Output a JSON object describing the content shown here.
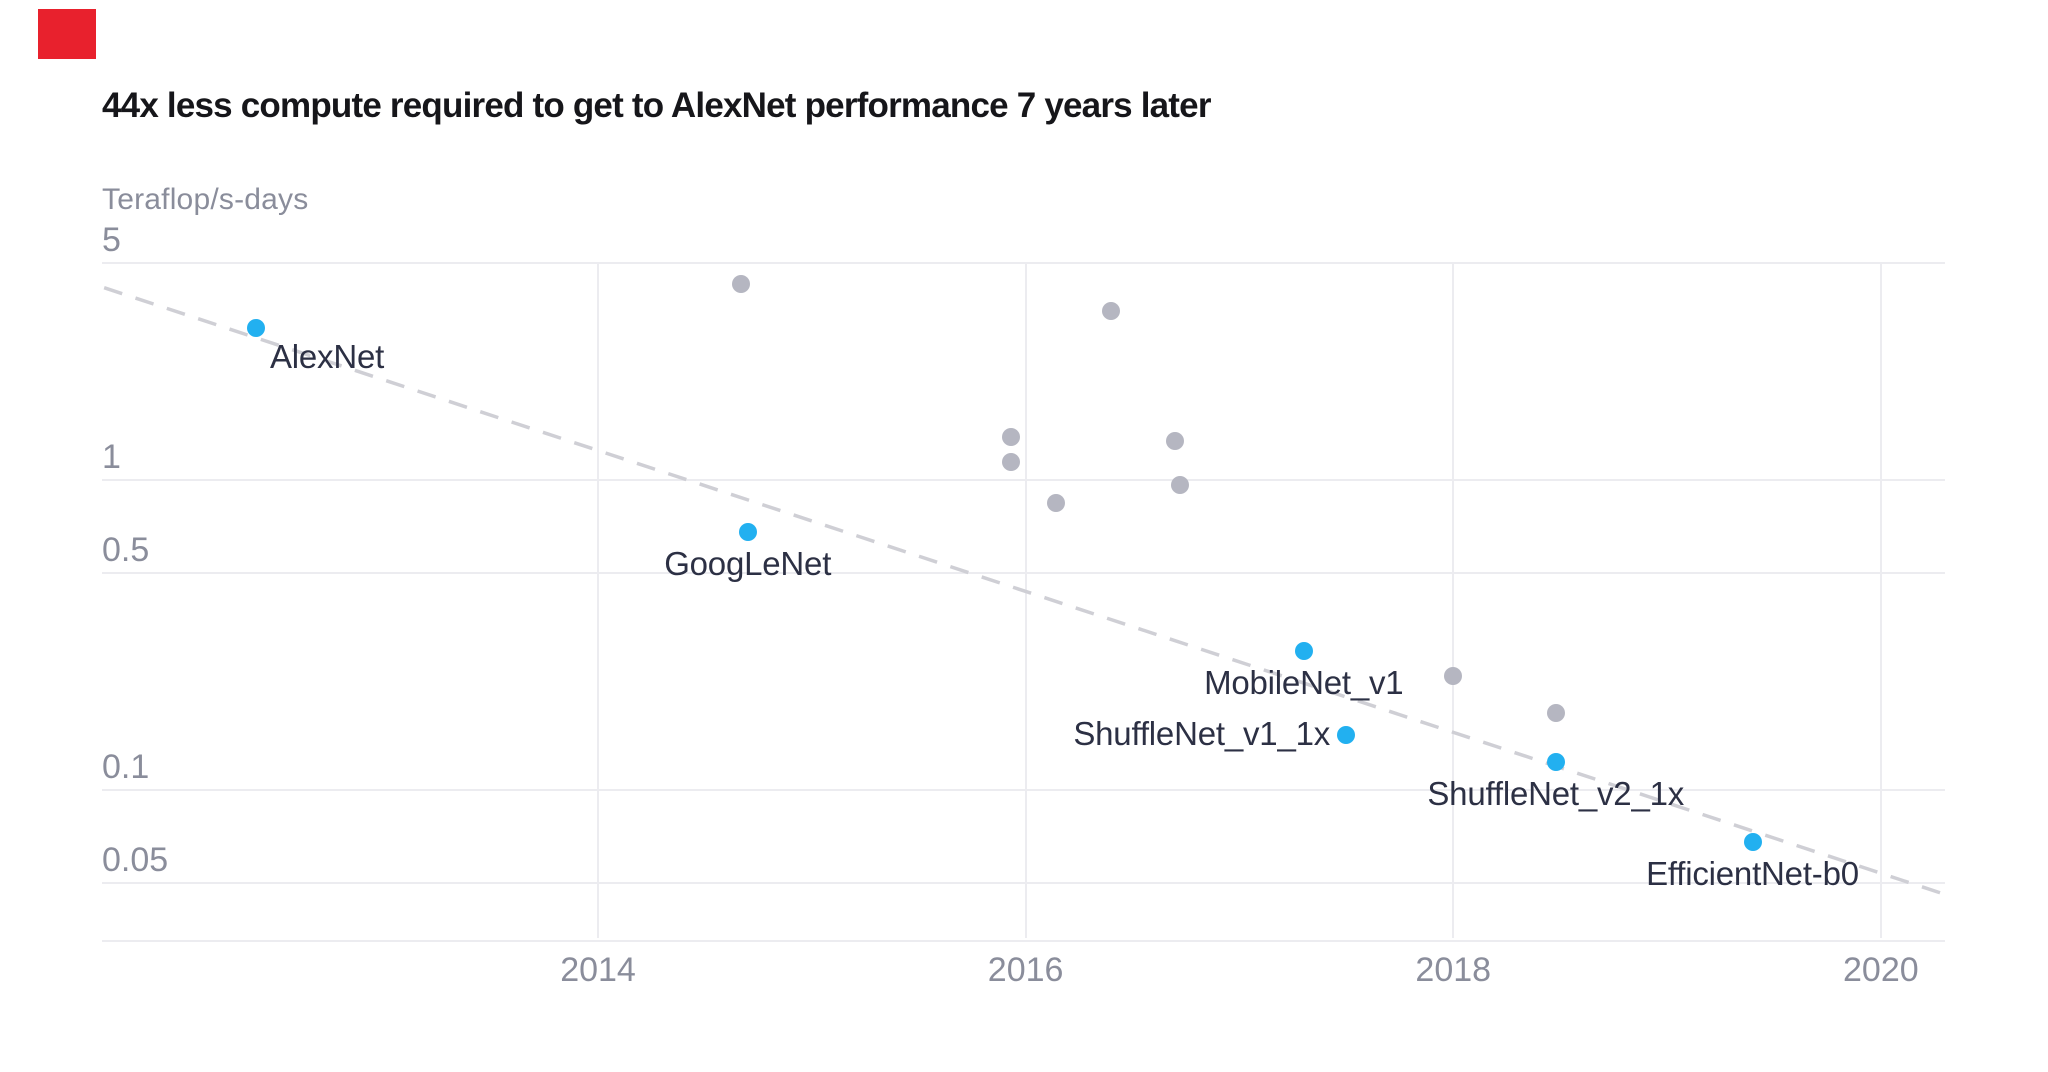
{
  "page": {
    "background_color": "#ffffff",
    "click_marker_color": "#e8212d"
  },
  "title": "44x less compute required to get to AlexNet performance 7 years later",
  "chart_data": {
    "type": "scatter",
    "title": "44x less compute required to get to AlexNet performance 7 years later",
    "xlabel": "",
    "ylabel": "Teraflop/s-days",
    "y_scale": "log",
    "grid": true,
    "legend": "none",
    "xlim": [
      2011.68,
      2020.3
    ],
    "ylim": [
      0.0326,
      5.01
    ],
    "x_ticks": [
      {
        "label": "2014",
        "year": 2014
      },
      {
        "label": "2016",
        "year": 2016
      },
      {
        "label": "2018",
        "year": 2018
      },
      {
        "label": "2020",
        "year": 2020
      }
    ],
    "y_ticks": [
      {
        "label": "5",
        "value": 5
      },
      {
        "label": "1",
        "value": 1
      },
      {
        "label": "0.5",
        "value": 0.5
      },
      {
        "label": "0.1",
        "value": 0.1
      },
      {
        "label": "0.05",
        "value": 0.05
      }
    ],
    "labeled_points": [
      {
        "name": "AlexNet",
        "year": 2012.4,
        "value": 3.1,
        "placement": "below-right"
      },
      {
        "name": "GoogLeNet",
        "year": 2014.7,
        "value": 0.68,
        "placement": "below-center"
      },
      {
        "name": "MobileNet_v1",
        "year": 2017.3,
        "value": 0.28,
        "placement": "below-center"
      },
      {
        "name": "ShuffleNet_v1_1x",
        "year": 2017.5,
        "value": 0.15,
        "placement": "left"
      },
      {
        "name": "ShuffleNet_v2_1x",
        "year": 2018.48,
        "value": 0.123,
        "placement": "below-center"
      },
      {
        "name": "EfficientNet-b0",
        "year": 2019.4,
        "value": 0.068,
        "placement": "below-center"
      }
    ],
    "unlabeled_points": [
      {
        "year": 2014.67,
        "value": 4.3
      },
      {
        "year": 2016.4,
        "value": 3.5
      },
      {
        "year": 2015.93,
        "value": 1.38
      },
      {
        "year": 2015.93,
        "value": 1.14
      },
      {
        "year": 2016.14,
        "value": 0.84
      },
      {
        "year": 2016.7,
        "value": 1.34
      },
      {
        "year": 2016.72,
        "value": 0.96
      },
      {
        "year": 2018.0,
        "value": 0.233
      },
      {
        "year": 2018.48,
        "value": 0.177
      }
    ],
    "trend_line": {
      "style": "dashed",
      "points": [
        [
          2011.69,
          4.17
        ],
        [
          2020.295,
          0.0462
        ]
      ]
    },
    "colors": {
      "labeled_point": "#22b0f0",
      "unlabeled_point": "#b5b6c1",
      "trend_line": "#cfcfd5",
      "gridline": "#ececf0",
      "tick_text": "#8a8d9b",
      "point_label_text": "#2c3044",
      "title_text": "#16161a"
    }
  }
}
